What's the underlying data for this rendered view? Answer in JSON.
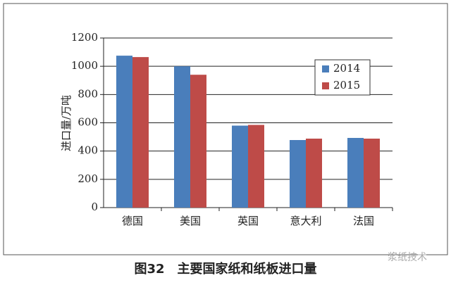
{
  "chart_data": {
    "type": "bar",
    "title": "图32　主要国家纸和纸板进口量",
    "watermark": "浆纸技术",
    "y_label": "进口量/万吨",
    "categories": [
      "德国",
      "美国",
      "英国",
      "意大利",
      "法国"
    ],
    "series": [
      {
        "name": "2014",
        "color": "#4a7ebb",
        "values": [
          1075,
          1000,
          580,
          478,
          493
        ]
      },
      {
        "name": "2015",
        "color": "#be4b48",
        "values": [
          1065,
          940,
          585,
          488,
          488
        ]
      }
    ],
    "ylim": [
      0,
      1200
    ],
    "yticks": [
      0,
      200,
      400,
      600,
      800,
      1000,
      1200
    ],
    "grid": true,
    "legend": "upper right"
  }
}
